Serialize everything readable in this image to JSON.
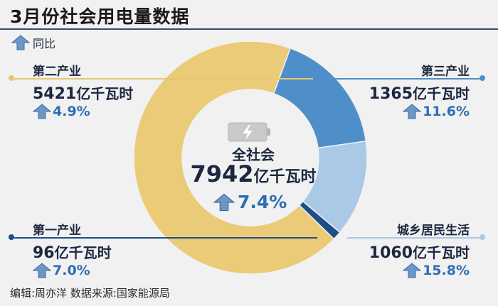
{
  "title": "3月份社会用电量数据",
  "legend": {
    "label": "同比",
    "icon": "up-arrow-icon"
  },
  "chart_data": {
    "type": "pie",
    "variant": "donut",
    "unit": "亿千瓦时",
    "center": {
      "name": "全社会",
      "value": 7942,
      "unit": "亿千瓦时",
      "change": "7.4%"
    },
    "series": [
      {
        "name": "第二产业",
        "value": 5421,
        "unit": "亿千瓦时",
        "change": "4.9%",
        "color": "#ebcb78"
      },
      {
        "name": "第三产业",
        "value": 1365,
        "unit": "亿千瓦时",
        "change": "11.6%",
        "color": "#4f8fc9"
      },
      {
        "name": "城乡居民生活",
        "value": 1060,
        "unit": "亿千瓦时",
        "change": "15.8%",
        "color": "#a9c9e6"
      },
      {
        "name": "第一产业",
        "value": 96,
        "unit": "亿千瓦时",
        "change": "7.0%",
        "color": "#1d4f86"
      }
    ]
  },
  "colors": {
    "arrow": "#6a96c8",
    "arrow_edge": "#3d6aa0",
    "accent_text": "#2e6fb2",
    "leader_yellow": "#e7c66e",
    "leader_blue": "#4f8fc9",
    "leader_dark": "#1d4f86"
  },
  "footer": "编辑:周亦洋  数据来源:国家能源局"
}
